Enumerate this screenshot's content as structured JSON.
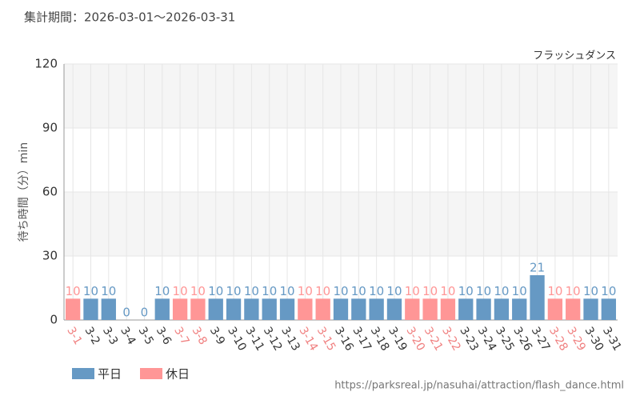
{
  "chart_data": {
    "type": "bar",
    "title": "集計期間：2026-03-01～2026-03-31",
    "subtitle": "フラッシュダンス",
    "y_label": "待ち時間（分）min",
    "source": "https://parksreal.jp/nasuhai/attraction/flash_dance.html",
    "categories": [
      "3-1",
      "3-2",
      "3-3",
      "3-4",
      "3-5",
      "3-6",
      "3-7",
      "3-8",
      "3-9",
      "3-10",
      "3-11",
      "3-12",
      "3-13",
      "3-14",
      "3-15",
      "3-16",
      "3-17",
      "3-18",
      "3-19",
      "3-20",
      "3-21",
      "3-22",
      "3-23",
      "3-24",
      "3-25",
      "3-26",
      "3-27",
      "3-28",
      "3-29",
      "3-30",
      "3-31"
    ],
    "series": [
      {
        "name": "平日",
        "color": "#6699c4",
        "label_color": "#333333",
        "values": [
          null,
          10,
          10,
          0,
          0,
          10,
          null,
          null,
          10,
          10,
          10,
          10,
          10,
          null,
          null,
          10,
          10,
          10,
          10,
          null,
          null,
          null,
          10,
          10,
          10,
          10,
          21,
          null,
          null,
          10,
          10
        ]
      },
      {
        "name": "休日",
        "color": "#ff9696",
        "label_color": "#f08080",
        "values": [
          10,
          null,
          null,
          null,
          null,
          null,
          10,
          10,
          null,
          null,
          null,
          null,
          null,
          10,
          10,
          null,
          null,
          null,
          null,
          10,
          10,
          10,
          null,
          null,
          null,
          null,
          null,
          10,
          10,
          null,
          null
        ]
      }
    ],
    "ylim": [
      0,
      120
    ],
    "yticks": [
      0,
      30,
      60,
      90,
      120
    ],
    "grid": true
  }
}
